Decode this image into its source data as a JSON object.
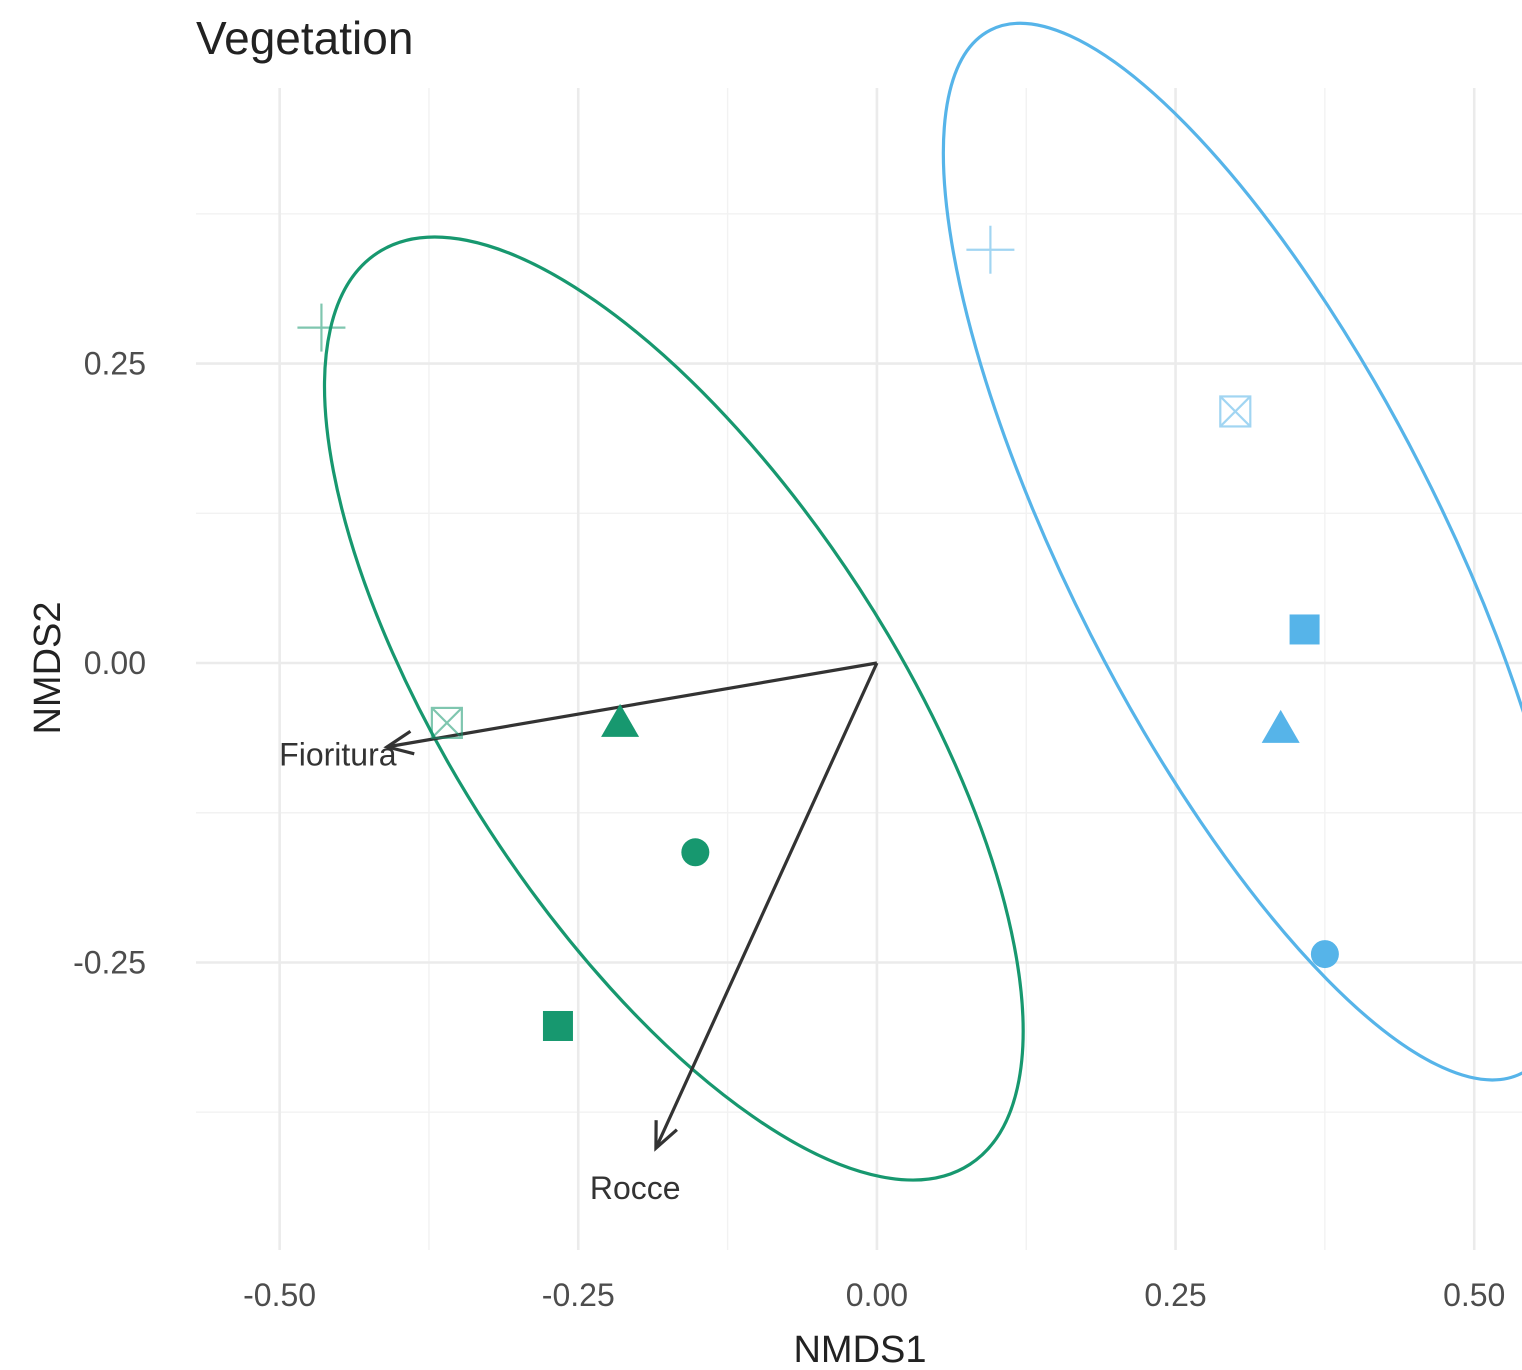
{
  "chart_data": {
    "type": "scatter",
    "title": "Vegetation",
    "xlabel": "NMDS1",
    "ylabel": "NMDS2",
    "xlim": [
      -0.57,
      0.54
    ],
    "ylim": [
      -0.49,
      0.48
    ],
    "x_ticks": [
      -0.5,
      -0.25,
      0.0,
      0.25,
      0.5
    ],
    "x_tick_labels": [
      "-0.50",
      "-0.25",
      "0.00",
      "0.25",
      "0.50"
    ],
    "y_ticks": [
      -0.25,
      0.0,
      0.25
    ],
    "y_tick_labels": [
      "-0.25",
      "0.00",
      "0.25"
    ],
    "grid": true,
    "legend": "none",
    "groups": [
      {
        "color": "#17986f",
        "ellipse": {
          "cx": -0.17,
          "cy": -0.038,
          "rx": 0.455,
          "ry": 0.185,
          "angle_deg": 57
        },
        "points": [
          {
            "shape": "plus",
            "x": -0.465,
            "y": 0.28
          },
          {
            "shape": "square-cross",
            "x": -0.36,
            "y": -0.05
          },
          {
            "shape": "triangle",
            "x": -0.215,
            "y": -0.05
          },
          {
            "shape": "circle",
            "x": -0.152,
            "y": -0.158
          },
          {
            "shape": "square",
            "x": -0.267,
            "y": -0.303
          }
        ]
      },
      {
        "color": "#56b4e9",
        "ellipse": {
          "cx": 0.3175,
          "cy": 0.093,
          "rx": 0.49,
          "ry": 0.155,
          "angle_deg": 63
        },
        "points": [
          {
            "shape": "plus",
            "x": 0.095,
            "y": 0.345
          },
          {
            "shape": "square-cross",
            "x": 0.3,
            "y": 0.21
          },
          {
            "shape": "square",
            "x": 0.358,
            "y": 0.028
          },
          {
            "shape": "triangle",
            "x": 0.338,
            "y": -0.055
          },
          {
            "shape": "circle",
            "x": 0.375,
            "y": -0.243
          }
        ]
      }
    ],
    "vectors": [
      {
        "label": "Fioritura",
        "x": -0.41,
        "y": -0.07
      },
      {
        "label": "Rocce",
        "x": -0.185,
        "y": -0.405
      }
    ]
  }
}
